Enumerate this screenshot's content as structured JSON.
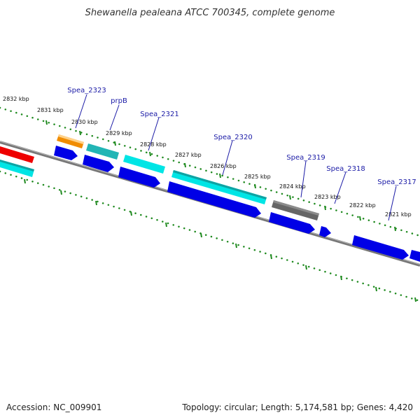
{
  "title": "Shewanella pealeana ATCC 700345, complete genome",
  "footer": {
    "accession": "Accession: NC_009901",
    "summary": "Topology: circular; Length: 5,174,581 bp; Genes: 4,420"
  },
  "colors": {
    "backbone": "#7a7a7a",
    "ticks": "#1f8a1f",
    "cds_forward": "#0000e6",
    "cds_cyan": "#00e5e5",
    "cds_teal": "#22b5b5",
    "cds_orange": "#f08c00",
    "cds_red": "#ee0000",
    "cds_gray": "#666666",
    "label": "#1a1aa6"
  },
  "kbp_labels": [
    "2832 kbp",
    "2831 kbp",
    "2830 kbp",
    "2829 kbp",
    "2828 kbp",
    "2827 kbp",
    "2826 kbp",
    "2825 kbp",
    "2824 kbp",
    "2823 kbp",
    "2822 kbp",
    "2821 kbp"
  ],
  "gene_labels": [
    "Spea_2323",
    "prpB",
    "Spea_2321",
    "Spea_2320",
    "Spea_2319",
    "Spea_2318",
    "Spea_2317"
  ]
}
